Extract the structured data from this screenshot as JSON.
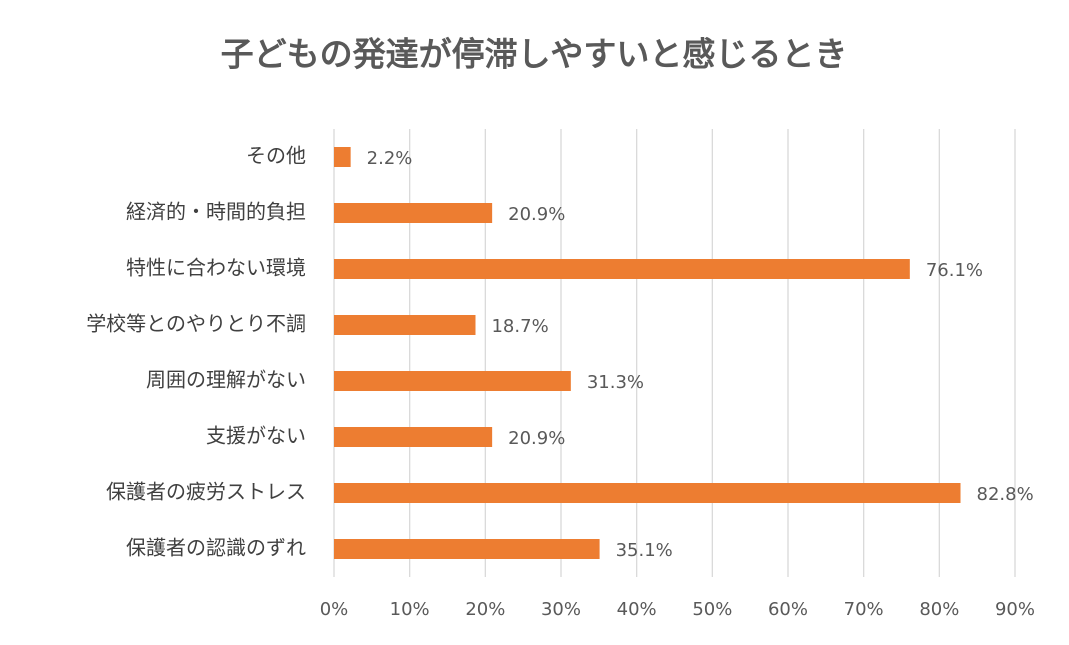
{
  "chart_data": {
    "type": "bar",
    "orientation": "horizontal",
    "title": "子どもの発達が停滞しやすいと感じるとき",
    "categories": [
      "その他",
      "経済的・時間的負担",
      "特性に合わない環境",
      "学校等とのやりとり不調",
      "周囲の理解がない",
      "支援がない",
      "保護者の疲労ストレス",
      "保護者の認識のずれ"
    ],
    "values": [
      2.2,
      20.9,
      76.1,
      18.7,
      31.3,
      20.9,
      82.8,
      35.1
    ],
    "value_labels": [
      "2.2%",
      "20.9%",
      "76.1%",
      "18.7%",
      "31.3%",
      "20.9%",
      "82.8%",
      "35.1%"
    ],
    "color": "#ed7d31",
    "xlim": [
      0,
      90
    ],
    "xticks": [
      {
        "value": 0,
        "label": "0%"
      },
      {
        "value": 10,
        "label": "10%"
      },
      {
        "value": 20,
        "label": "20%"
      },
      {
        "value": 30,
        "label": "30%"
      },
      {
        "value": 40,
        "label": "40%"
      },
      {
        "value": 50,
        "label": "50%"
      },
      {
        "value": 60,
        "label": "60%"
      },
      {
        "value": 70,
        "label": "70%"
      },
      {
        "value": 80,
        "label": "80%"
      },
      {
        "value": 90,
        "label": "90%"
      }
    ],
    "grid": true
  }
}
